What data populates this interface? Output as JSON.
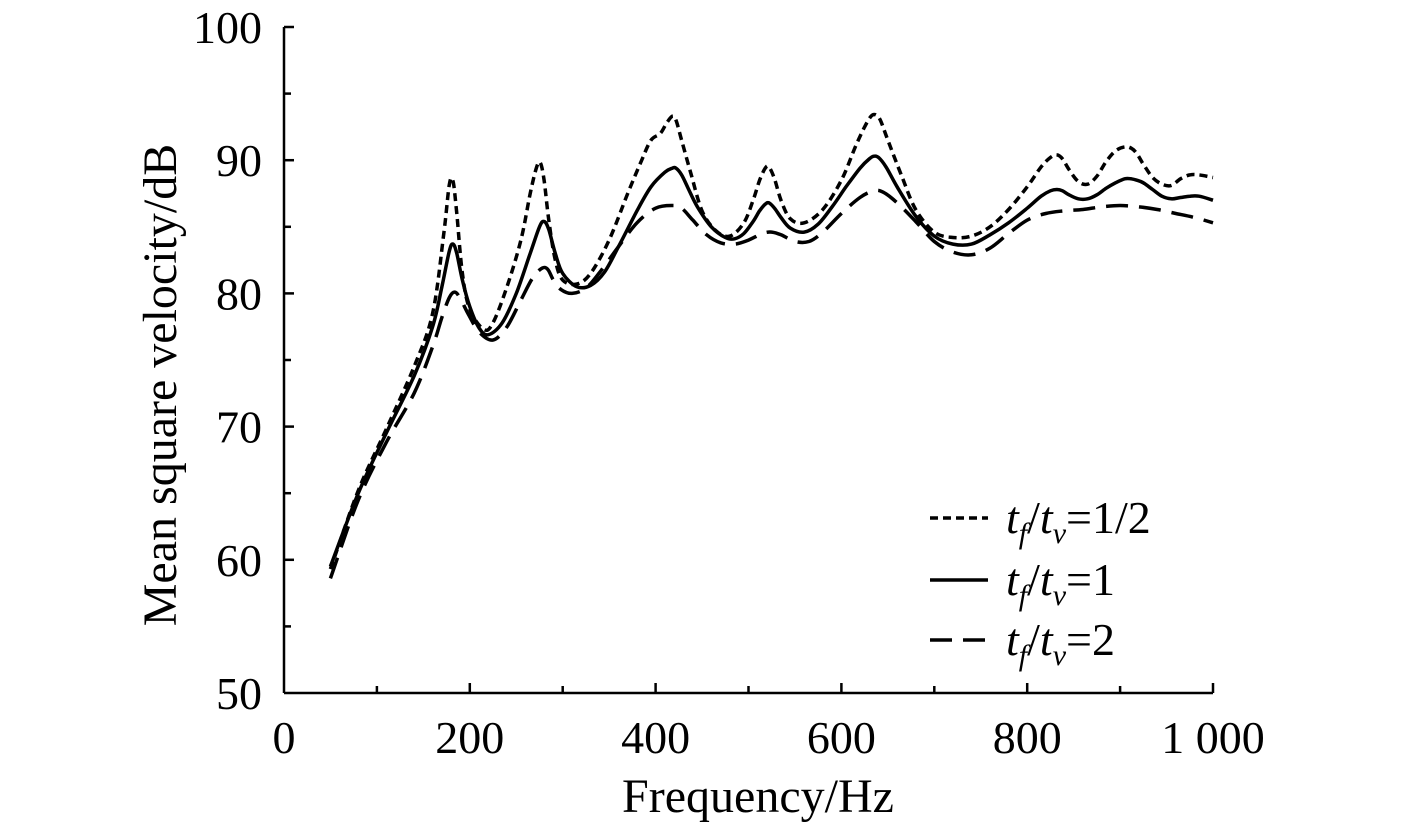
{
  "chart_data": {
    "type": "line",
    "title": "",
    "xlabel": "Frequency/Hz",
    "ylabel": "Mean square velocity/dB",
    "xlim": [
      0,
      1000
    ],
    "ylim": [
      50,
      100
    ],
    "x_ticks": [
      0,
      200,
      400,
      600,
      800,
      1000
    ],
    "x_tick_labels": [
      "0",
      "200",
      "400",
      "600",
      "800",
      "1 000"
    ],
    "y_ticks": [
      50,
      60,
      70,
      80,
      90,
      100
    ],
    "y_tick_labels": [
      "50",
      "60",
      "70",
      "80",
      "90",
      "100"
    ],
    "grid": false,
    "legend_position": "bottom-right",
    "legend": [
      {
        "series": 0,
        "text_a": "t",
        "sub_a": "f",
        "slash": "/",
        "text_b": "t",
        "sub_b": "v",
        "eq": "=1/2"
      },
      {
        "series": 1,
        "text_a": "t",
        "sub_a": "f",
        "slash": "/",
        "text_b": "t",
        "sub_b": "v",
        "eq": "=1"
      },
      {
        "series": 2,
        "text_a": "t",
        "sub_a": "f",
        "slash": "/",
        "text_b": "t",
        "sub_b": "v",
        "eq": "=2"
      }
    ],
    "series": [
      {
        "style": "dotted",
        "x": [
          50,
          80,
          110,
          140,
          160,
          172,
          178,
          182,
          186,
          192,
          200,
          215,
          225,
          240,
          255,
          265,
          272,
          276,
          280,
          285,
          292,
          300,
          315,
          330,
          350,
          370,
          385,
          395,
          405,
          412,
          418,
          422,
          428,
          438,
          450,
          465,
          480,
          495,
          505,
          512,
          518,
          522,
          528,
          535,
          545,
          560,
          580,
          600,
          615,
          625,
          632,
          637,
          642,
          650,
          665,
          680,
          700,
          720,
          740,
          760,
          780,
          800,
          815,
          825,
          832,
          838,
          845,
          855,
          865,
          875,
          885,
          895,
          905,
          912,
          918,
          925,
          935,
          945,
          955,
          965,
          975,
          985,
          1000
        ],
        "y": [
          59.3,
          65.2,
          69.8,
          74.5,
          78.5,
          84.5,
          88.2,
          88.4,
          86.0,
          81.5,
          78.8,
          77.3,
          77.8,
          80.5,
          84.0,
          87.5,
          89.5,
          89.8,
          88.5,
          85.5,
          82.5,
          81.0,
          80.7,
          81.5,
          84.0,
          87.5,
          90.0,
          91.5,
          92.0,
          92.8,
          93.3,
          93.0,
          91.5,
          89.0,
          86.2,
          84.7,
          84.3,
          85.3,
          87.0,
          88.5,
          89.4,
          89.5,
          88.6,
          87.0,
          85.6,
          85.3,
          86.3,
          88.5,
          91.0,
          92.5,
          93.3,
          93.4,
          93.0,
          91.5,
          88.8,
          86.3,
          84.6,
          84.2,
          84.3,
          85.0,
          86.3,
          88.0,
          89.5,
          90.2,
          90.4,
          90.1,
          89.3,
          88.4,
          88.2,
          88.8,
          89.9,
          90.7,
          91.0,
          90.9,
          90.5,
          89.7,
          88.7,
          88.2,
          88.1,
          88.6,
          88.9,
          88.9,
          88.7
        ]
      },
      {
        "style": "solid",
        "x": [
          50,
          80,
          110,
          140,
          160,
          170,
          178,
          182,
          186,
          192,
          200,
          210,
          220,
          235,
          250,
          265,
          275,
          280,
          285,
          292,
          300,
          315,
          330,
          345,
          360,
          380,
          395,
          410,
          418,
          422,
          428,
          435,
          445,
          460,
          475,
          485,
          495,
          505,
          512,
          518,
          522,
          528,
          535,
          545,
          560,
          575,
          590,
          605,
          620,
          630,
          635,
          640,
          648,
          660,
          680,
          700,
          720,
          740,
          760,
          780,
          800,
          815,
          825,
          832,
          838,
          845,
          855,
          865,
          875,
          885,
          895,
          905,
          912,
          918,
          925,
          935,
          945,
          955,
          965,
          975,
          985,
          1000
        ],
        "y": [
          59.5,
          65.0,
          69.5,
          73.8,
          77.5,
          80.5,
          83.2,
          83.7,
          83.0,
          81.0,
          79.0,
          77.4,
          76.9,
          77.8,
          80.0,
          83.0,
          85.0,
          85.4,
          84.8,
          83.0,
          81.5,
          80.5,
          80.6,
          81.6,
          83.5,
          86.2,
          88.0,
          89.1,
          89.4,
          89.4,
          88.9,
          87.9,
          86.5,
          85.0,
          84.2,
          84.1,
          84.5,
          85.4,
          86.2,
          86.7,
          86.8,
          86.4,
          85.7,
          84.9,
          84.6,
          85.2,
          86.5,
          88.0,
          89.4,
          90.1,
          90.3,
          90.2,
          89.5,
          88.0,
          85.8,
          84.3,
          83.7,
          83.7,
          84.4,
          85.3,
          86.4,
          87.3,
          87.7,
          87.8,
          87.7,
          87.4,
          87.1,
          87.1,
          87.4,
          87.9,
          88.3,
          88.6,
          88.6,
          88.5,
          88.3,
          87.8,
          87.3,
          87.1,
          87.2,
          87.3,
          87.3,
          87.0
        ]
      },
      {
        "style": "dashed",
        "x": [
          50,
          80,
          110,
          140,
          160,
          170,
          178,
          184,
          190,
          198,
          210,
          225,
          240,
          255,
          268,
          278,
          284,
          290,
          298,
          310,
          325,
          340,
          360,
          380,
          400,
          418,
          428,
          440,
          455,
          470,
          485,
          500,
          515,
          525,
          535,
          550,
          565,
          580,
          600,
          620,
          635,
          645,
          660,
          680,
          700,
          720,
          740,
          760,
          780,
          800,
          820,
          840,
          860,
          880,
          900,
          920,
          940,
          960,
          980,
          1000
        ],
        "y": [
          58.6,
          64.5,
          68.8,
          72.5,
          76.0,
          78.2,
          79.7,
          80.1,
          79.6,
          78.5,
          77.1,
          76.5,
          77.5,
          79.5,
          81.2,
          81.9,
          81.8,
          81.0,
          80.3,
          80.0,
          80.4,
          81.6,
          83.5,
          85.3,
          86.4,
          86.6,
          86.4,
          85.5,
          84.4,
          83.8,
          83.7,
          84.0,
          84.5,
          84.6,
          84.4,
          83.9,
          83.9,
          84.6,
          86.0,
          87.2,
          87.7,
          87.6,
          86.8,
          85.4,
          83.9,
          83.1,
          82.9,
          83.4,
          84.5,
          85.5,
          86.0,
          86.2,
          86.3,
          86.5,
          86.6,
          86.5,
          86.3,
          86.0,
          85.7,
          85.3
        ]
      }
    ]
  }
}
